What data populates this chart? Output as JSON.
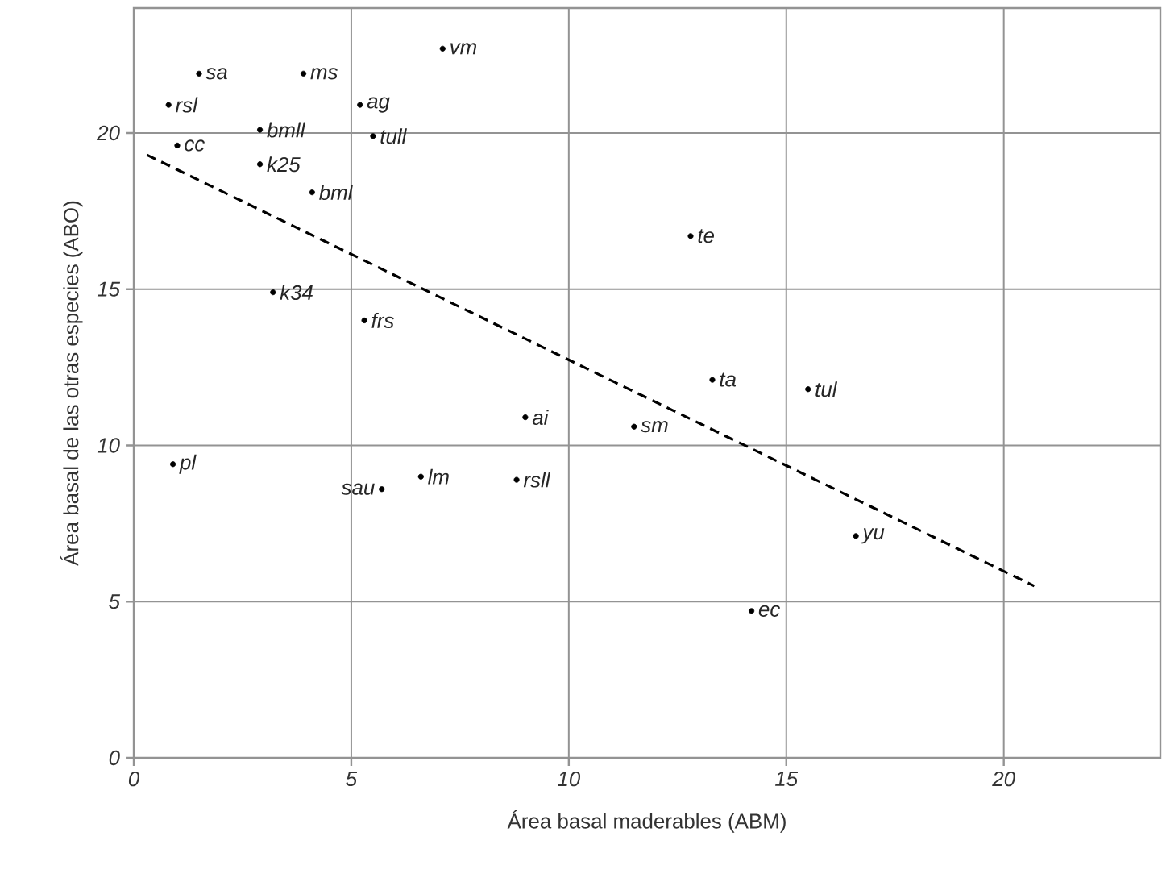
{
  "chart_data": {
    "type": "scatter",
    "xlabel": "Área basal maderables (ABM)",
    "ylabel": "Área basal de las otras especies (ABO)",
    "xlim": [
      0,
      23.6
    ],
    "ylim": [
      0,
      24
    ],
    "xticks": [
      0,
      5,
      10,
      15,
      20
    ],
    "yticks": [
      0,
      5,
      10,
      15,
      20
    ],
    "grid": true,
    "marker": "circle",
    "series": [
      {
        "color": "#000000",
        "x": [
          1.5,
          3.9,
          7.1,
          0.8,
          5.2,
          2.9,
          5.5,
          1.0,
          2.9,
          4.1,
          3.2,
          5.3,
          9.0,
          12.8,
          13.3,
          15.5,
          11.5,
          0.9,
          5.7,
          6.6,
          8.8,
          16.6,
          14.2
        ],
        "values": [
          21.9,
          21.9,
          22.7,
          20.9,
          20.9,
          20.1,
          19.9,
          19.6,
          19.0,
          18.1,
          14.9,
          14.0,
          10.9,
          16.7,
          12.1,
          11.8,
          10.6,
          9.4,
          8.6,
          9.0,
          8.9,
          7.1,
          4.7
        ]
      },
      {
        "type": "line",
        "color": "#000000",
        "line_style": "dashed",
        "marker": "none",
        "x": [
          0.3,
          20.7
        ],
        "values": [
          19.3,
          5.5
        ]
      }
    ],
    "annotations": [
      {
        "text": "sa",
        "x": 1.5,
        "y": 21.9
      },
      {
        "text": "ms",
        "x": 3.9,
        "y": 21.9
      },
      {
        "text": "vm",
        "x": 7.1,
        "y": 22.7
      },
      {
        "text": "rsl",
        "x": 0.8,
        "y": 20.9
      },
      {
        "text": "ag",
        "x": 5.2,
        "y": 20.9
      },
      {
        "text": "bmll",
        "x": 2.9,
        "y": 20.1
      },
      {
        "text": "tull",
        "x": 5.5,
        "y": 19.9
      },
      {
        "text": "cc",
        "x": 1.0,
        "y": 19.6
      },
      {
        "text": "k25",
        "x": 2.9,
        "y": 19.0
      },
      {
        "text": "bml",
        "x": 4.1,
        "y": 18.1
      },
      {
        "text": "k34",
        "x": 3.2,
        "y": 14.9
      },
      {
        "text": "frs",
        "x": 5.3,
        "y": 14.0
      },
      {
        "text": "ai",
        "x": 9.0,
        "y": 10.9
      },
      {
        "text": "te",
        "x": 12.8,
        "y": 16.7
      },
      {
        "text": "ta",
        "x": 13.3,
        "y": 12.1
      },
      {
        "text": "tul",
        "x": 15.5,
        "y": 11.8
      },
      {
        "text": "sm",
        "x": 11.5,
        "y": 10.6
      },
      {
        "text": "pl",
        "x": 0.9,
        "y": 9.4
      },
      {
        "text": "sau",
        "x": 5.7,
        "y": 8.6
      },
      {
        "text": "lm",
        "x": 6.6,
        "y": 9.0
      },
      {
        "text": "rsll",
        "x": 8.8,
        "y": 8.9
      },
      {
        "text": "yu",
        "x": 16.6,
        "y": 7.1
      },
      {
        "text": "ec",
        "x": 14.2,
        "y": 4.7
      }
    ]
  }
}
